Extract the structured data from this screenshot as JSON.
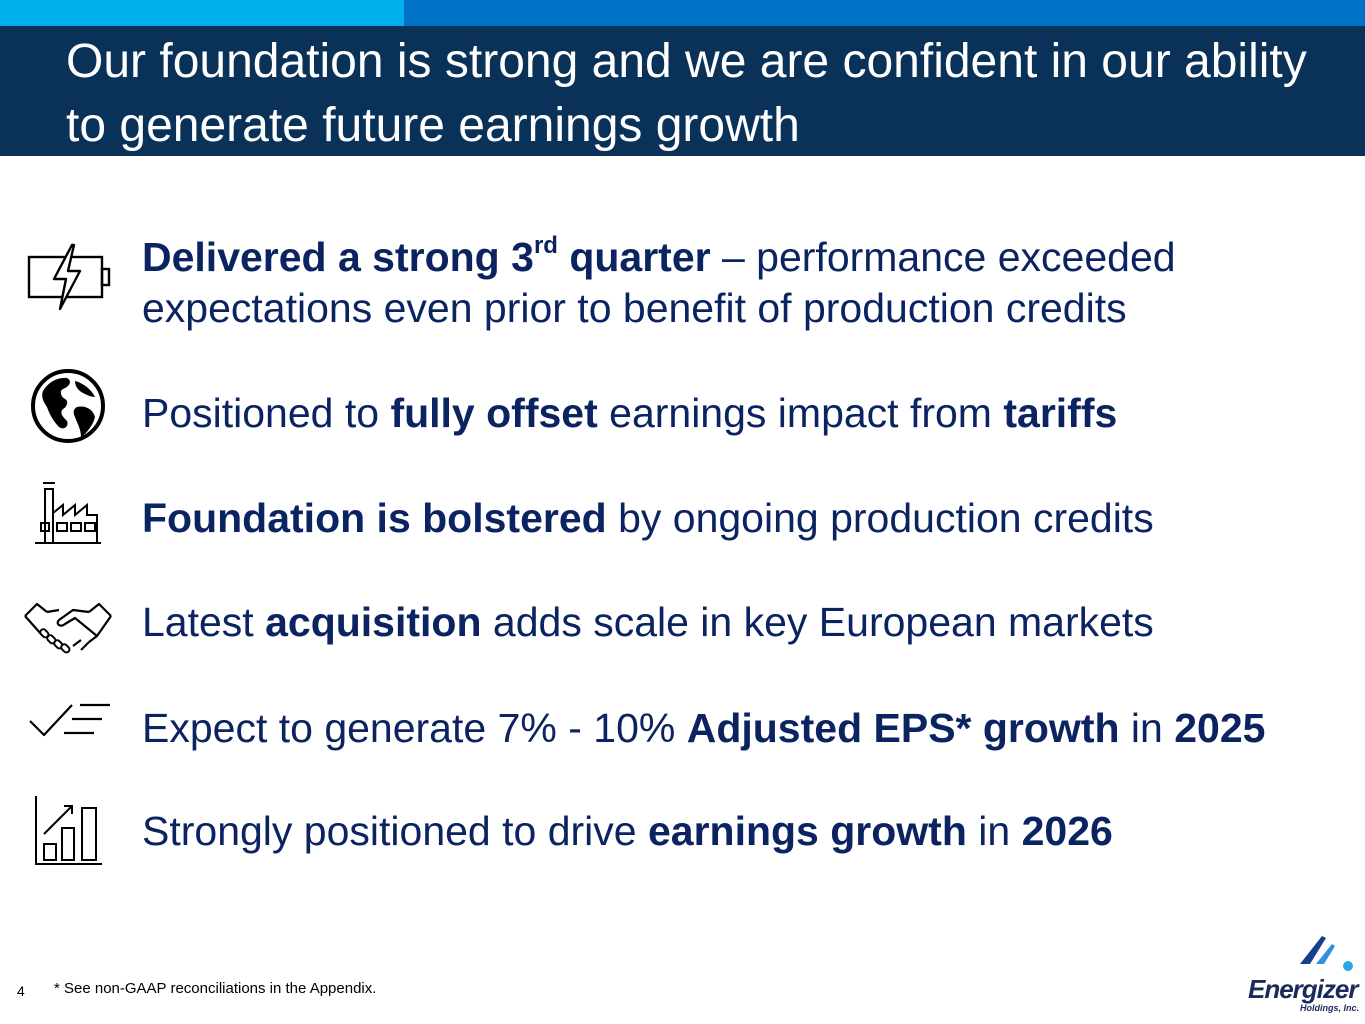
{
  "title": "Our foundation is strong and we are confident in our ability to generate future earnings growth",
  "bullets": [
    {
      "icon": "battery-bolt-icon",
      "b1": "Delivered a strong 3",
      "sup": "rd",
      "b2": " quarter",
      "t1": " – performance exceeded",
      "t2": "expectations even prior to benefit of production credits"
    },
    {
      "icon": "globe-icon",
      "t1": "Positioned to ",
      "b1": "fully offset",
      "t2": " earnings impact from ",
      "b2": "tariffs"
    },
    {
      "icon": "factory-icon",
      "b1": "Foundation is bolstered",
      "t1": " by ongoing production credits"
    },
    {
      "icon": "handshake-icon",
      "t1": "Latest ",
      "b1": "acquisition",
      "t2": " adds scale in key European markets"
    },
    {
      "icon": "checklist-icon",
      "t1": "Expect to generate 7% - 10% ",
      "b1": "Adjusted EPS* growth",
      "t2": " in ",
      "b2": "2025"
    },
    {
      "icon": "growth-chart-icon",
      "t1": "Strongly positioned to drive ",
      "b1": "earnings growth",
      "t2": " in ",
      "b2": "2026"
    }
  ],
  "footnote": "* See non-GAAP reconciliations in the Appendix.",
  "page_number": "4",
  "logo": {
    "name": "Energizer",
    "sub": "Holdings, Inc."
  },
  "colors": {
    "title_band": "#0a3158",
    "bar_light": "#00b0ec",
    "bar_mid": "#0072c6",
    "text": "#0b2361"
  }
}
